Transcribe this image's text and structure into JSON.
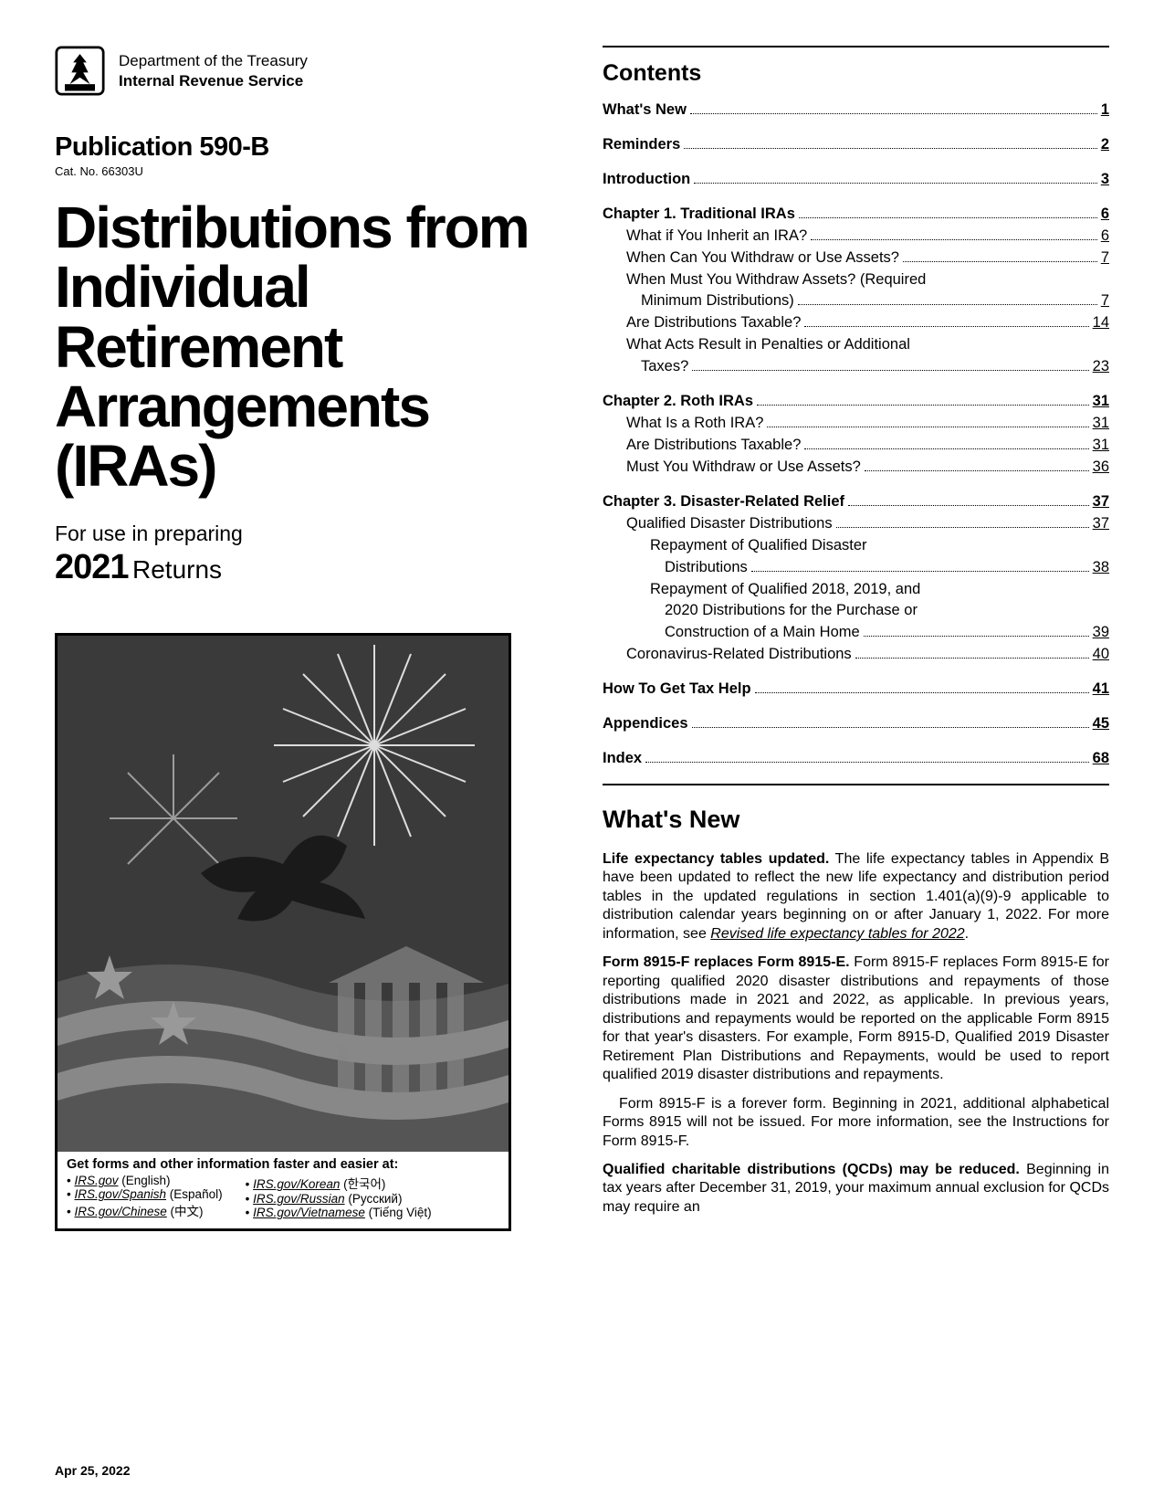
{
  "header": {
    "dept1": "Department of the Treasury",
    "dept2": "Internal Revenue Service",
    "pub_label": "Publication 590-B",
    "cat_no": "Cat. No. 66303U"
  },
  "title": "Distributions from Individual Retirement Arrangements (IRAs)",
  "subtitle_intro": "For use in preparing",
  "year": "2021",
  "returns_word": "Returns",
  "promo": {
    "heading": "Get forms and other information faster and easier at:",
    "links_col1": [
      {
        "url": "IRS.gov",
        "lang": "(English)"
      },
      {
        "url": "IRS.gov/Spanish",
        "lang": "(Español)"
      },
      {
        "url": "IRS.gov/Chinese",
        "lang": "(中文)"
      }
    ],
    "links_col2": [
      {
        "url": "IRS.gov/Korean",
        "lang": "(한국어)"
      },
      {
        "url": "IRS.gov/Russian",
        "lang": "(Русский)"
      },
      {
        "url": "IRS.gov/Vietnamese",
        "lang": "(Tiếng Việt)"
      }
    ]
  },
  "contents_label": "Contents",
  "toc": [
    {
      "type": "group",
      "items": [
        {
          "label": "What's New",
          "page": "1",
          "bold": true,
          "indent": 0
        }
      ]
    },
    {
      "type": "group",
      "items": [
        {
          "label": "Reminders",
          "page": "2",
          "bold": true,
          "indent": 0
        }
      ]
    },
    {
      "type": "group",
      "items": [
        {
          "label": "Introduction",
          "page": "3",
          "bold": true,
          "indent": 0
        }
      ]
    },
    {
      "type": "group",
      "items": [
        {
          "label": "Chapter 1. Traditional IRAs",
          "page": "6",
          "bold": true,
          "indent": 0
        },
        {
          "label": "What if You Inherit an IRA?",
          "page": "6",
          "bold": false,
          "indent": 1
        },
        {
          "label": "When Can You Withdraw or Use Assets?",
          "page": "7",
          "bold": false,
          "indent": 1
        },
        {
          "label": "When Must You Withdraw Assets? (Required",
          "page": "",
          "bold": false,
          "indent": 1,
          "nowrap_dots": true
        },
        {
          "label": "Minimum Distributions)",
          "page": "7",
          "bold": false,
          "indent": 1,
          "cont": true
        },
        {
          "label": "Are Distributions Taxable?",
          "page": "14",
          "bold": false,
          "indent": 1
        },
        {
          "label": "What Acts Result in Penalties or Additional",
          "page": "",
          "bold": false,
          "indent": 1,
          "nowrap_dots": true
        },
        {
          "label": "Taxes?",
          "page": "23",
          "bold": false,
          "indent": 1,
          "cont": true
        }
      ]
    },
    {
      "type": "group",
      "items": [
        {
          "label": "Chapter 2. Roth IRAs",
          "page": "31",
          "bold": true,
          "indent": 0
        },
        {
          "label": "What Is a Roth IRA?",
          "page": "31",
          "bold": false,
          "indent": 1
        },
        {
          "label": "Are Distributions Taxable?",
          "page": "31",
          "bold": false,
          "indent": 1
        },
        {
          "label": "Must You Withdraw or Use Assets?",
          "page": "36",
          "bold": false,
          "indent": 1
        }
      ]
    },
    {
      "type": "group",
      "items": [
        {
          "label": "Chapter 3. Disaster-Related Relief",
          "page": "37",
          "bold": true,
          "indent": 0
        },
        {
          "label": "Qualified Disaster Distributions",
          "page": "37",
          "bold": false,
          "indent": 1
        },
        {
          "label": "Repayment of Qualified Disaster",
          "page": "",
          "bold": false,
          "indent": 2,
          "nowrap_dots": true
        },
        {
          "label": "Distributions",
          "page": "38",
          "bold": false,
          "indent": 2,
          "cont": true
        },
        {
          "label": "Repayment of Qualified 2018, 2019, and",
          "page": "",
          "bold": false,
          "indent": 2,
          "nowrap_dots": true
        },
        {
          "label": "2020 Distributions for the Purchase or",
          "page": "",
          "bold": false,
          "indent": 2,
          "cont": true,
          "nowrap_dots": true
        },
        {
          "label": "Construction of a Main Home",
          "page": "39",
          "bold": false,
          "indent": 2,
          "cont": true
        },
        {
          "label": "Coronavirus-Related Distributions",
          "page": "40",
          "bold": false,
          "indent": 1
        }
      ]
    },
    {
      "type": "group",
      "items": [
        {
          "label": "How To Get Tax Help",
          "page": "41",
          "bold": true,
          "indent": 0
        }
      ]
    },
    {
      "type": "group",
      "items": [
        {
          "label": "Appendices",
          "page": "45",
          "bold": true,
          "indent": 0
        }
      ]
    },
    {
      "type": "group",
      "items": [
        {
          "label": "Index",
          "page": "68",
          "bold": true,
          "indent": 0
        }
      ]
    }
  ],
  "whats_new": {
    "heading": "What's New",
    "p1_runin": "Life expectancy tables updated.",
    "p1_body": " The life expectancy tables in Appendix B have been updated to reflect the new life expectancy and distribution period tables in the updated regulations in section 1.401(a)(9)-9 applicable to distribution calendar years beginning on or after January 1, 2022. For more information, see ",
    "p1_link": "Revised life expectancy tables for 2022",
    "p1_after": ".",
    "p2_runin": "Form 8915-F replaces Form 8915-E.",
    "p2_body": " Form 8915-F replaces Form 8915-E for reporting qualified 2020 disaster distributions and repayments of those distributions made in 2021 and 2022, as applicable. In previous years, distributions and repayments would be reported on the applicable Form 8915 for that year's disasters. For example, Form 8915-D, Qualified 2019 Disaster Retirement Plan Distributions and Repayments, would be used to report qualified 2019 disaster distributions and repayments.",
    "p3": "Form 8915-F is a forever form. Beginning in 2021, additional alphabetical Forms 8915 will not be issued. For more information, see the Instructions for Form 8915-F.",
    "p4_runin": "Qualified charitable distributions (QCDs) may be reduced.",
    "p4_body": " Beginning in tax years after December 31, 2019, your maximum annual exclusion for QCDs may require an"
  },
  "footer_date": "Apr 25, 2022",
  "colors": {
    "text": "#000000",
    "bg": "#ffffff",
    "rule": "#000000"
  }
}
